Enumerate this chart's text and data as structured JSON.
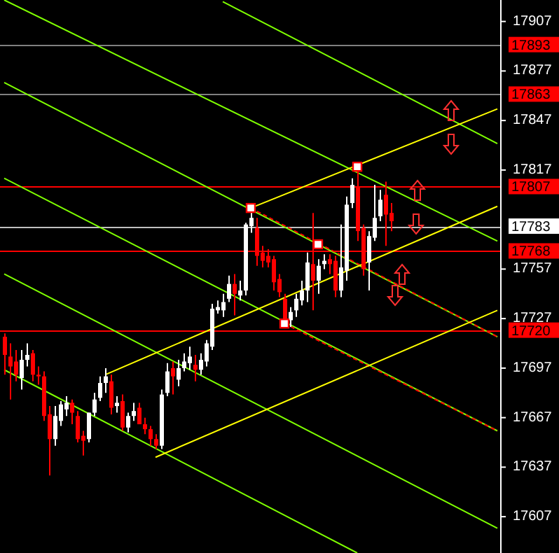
{
  "chart_data": {
    "type": "candlestick",
    "tick_labels": "y",
    "grid": false,
    "ylim": [
      17585,
      17920
    ],
    "yticks": [
      17907,
      17877,
      17847,
      17817,
      17757,
      17727,
      17697,
      17667,
      17637,
      17607
    ],
    "categories": [
      null,
      null,
      null,
      null,
      null,
      null,
      null,
      null,
      null,
      null,
      null,
      null,
      null,
      null,
      null,
      null,
      null,
      null,
      null,
      null,
      null,
      null,
      null,
      null,
      null,
      null,
      null,
      null,
      null,
      null,
      null,
      null,
      null,
      null,
      null,
      null,
      null,
      null,
      null,
      null,
      null,
      null,
      null,
      null,
      null,
      null,
      null,
      null,
      null,
      null,
      null,
      null,
      null,
      null,
      null,
      null,
      null,
      null,
      null,
      null,
      null,
      null,
      null,
      null,
      null,
      null,
      null,
      null,
      null,
      null,
      null,
      null,
      null,
      null,
      null,
      null,
      null,
      null,
      null,
      null,
      null,
      null,
      null,
      null,
      null,
      null,
      null,
      null,
      null
    ],
    "ohlc": [
      [
        17716,
        17718,
        17693,
        17705
      ],
      [
        17704,
        17712,
        17678,
        17698
      ],
      [
        17701,
        17708,
        17689,
        17693
      ],
      [
        17691,
        17708,
        17684,
        17702
      ],
      [
        17702,
        17712,
        17698,
        17705
      ],
      [
        17706,
        17708,
        17689,
        17693
      ],
      [
        17693,
        17698,
        17687,
        17692
      ],
      [
        17692,
        17695,
        17665,
        17668
      ],
      [
        17669,
        17674,
        17632,
        17654
      ],
      [
        17654,
        17674,
        17650,
        17668
      ],
      [
        17665,
        17677,
        17662,
        17675
      ],
      [
        17672,
        17680,
        17668,
        17676
      ],
      [
        17676,
        17678,
        17663,
        17670
      ],
      [
        17668,
        17671,
        17652,
        17654
      ],
      [
        17656,
        17659,
        17644,
        17653
      ],
      [
        17654,
        17670,
        17652,
        17670
      ],
      [
        17670,
        17682,
        17668,
        17678
      ],
      [
        17679,
        17692,
        17677,
        17688
      ],
      [
        17688,
        17697,
        17682,
        17692
      ],
      [
        17689,
        17693,
        17669,
        17673
      ],
      [
        17674,
        17680,
        17670,
        17676
      ],
      [
        17677,
        17681,
        17659,
        17661
      ],
      [
        17661,
        17670,
        17658,
        17668
      ],
      [
        17668,
        17676,
        17665,
        17671
      ],
      [
        17673,
        17676,
        17663,
        17663
      ],
      [
        17663,
        17667,
        17657,
        17660
      ],
      [
        17660,
        17662,
        17650,
        17654
      ],
      [
        17654,
        17657,
        17648,
        17650
      ],
      [
        17650,
        17684,
        17648,
        17681
      ],
      [
        17682,
        17700,
        17680,
        17695
      ],
      [
        17697,
        17701,
        17681,
        17692
      ],
      [
        17690,
        17702,
        17686,
        17697
      ],
      [
        17697,
        17706,
        17695,
        17701
      ],
      [
        17700,
        17710,
        17696,
        17704
      ],
      [
        17699,
        17705,
        17689,
        17696
      ],
      [
        17696,
        17706,
        17693,
        17702
      ],
      [
        17701,
        17714,
        17698,
        17712
      ],
      [
        17710,
        17736,
        17708,
        17733
      ],
      [
        17732,
        17738,
        17730,
        17734
      ],
      [
        17732,
        17742,
        17728,
        17737
      ],
      [
        17739,
        17753,
        17737,
        17748
      ],
      [
        17748,
        17754,
        17729,
        17742
      ],
      [
        17741,
        17750,
        17738,
        17744
      ],
      [
        17744,
        17785,
        17741,
        17784
      ],
      [
        17783,
        17794,
        17779,
        17788
      ],
      [
        17782,
        17788,
        17759,
        17765
      ],
      [
        17767,
        17771,
        17758,
        17762
      ],
      [
        17765,
        17769,
        17758,
        17761
      ],
      [
        17763,
        17765,
        17744,
        17749
      ],
      [
        17751,
        17754,
        17740,
        17743
      ],
      [
        17739,
        17742,
        17724,
        17727
      ],
      [
        17726,
        17734,
        17722,
        17731
      ],
      [
        17732,
        17742,
        17728,
        17739
      ],
      [
        17738,
        17750,
        17735,
        17744
      ],
      [
        17744,
        17767,
        17737,
        17761
      ],
      [
        17760,
        17791,
        17732,
        17750
      ],
      [
        17750,
        17763,
        17742,
        17759
      ],
      [
        17760,
        17766,
        17757,
        17762
      ],
      [
        17763,
        17766,
        17754,
        17760
      ],
      [
        17762,
        17765,
        17740,
        17744
      ],
      [
        17744,
        17784,
        17740,
        17758
      ],
      [
        17756,
        17801,
        17750,
        17796
      ],
      [
        17797,
        17812,
        17794,
        17808
      ],
      [
        17807,
        17819,
        17774,
        17780
      ],
      [
        17782,
        17784,
        17753,
        17757
      ],
      [
        17761,
        17780,
        17744,
        17777
      ],
      [
        17776,
        17808,
        17774,
        17788
      ],
      [
        17789,
        17805,
        17786,
        17799
      ],
      [
        17802,
        17810,
        17771,
        17790
      ],
      [
        17791,
        17797,
        17780,
        17786
      ],
      null,
      null,
      null,
      null,
      null,
      null,
      null,
      null,
      null,
      null,
      null,
      null,
      null,
      null,
      null,
      null,
      null,
      null,
      null
    ],
    "colors": [
      "#ff0000",
      "#ff0000",
      "#ff0000",
      "#ffffff",
      "#ffffff",
      "#ff0000",
      "#ff0000",
      "#ff0000",
      "#ff0000",
      "#ffffff",
      "#ffffff",
      "#ffffff",
      "#ff0000",
      "#ff0000",
      "#ff0000",
      "#ffffff",
      "#ffffff",
      "#ffffff",
      "#ffffff",
      "#ff0000",
      "#ffffff",
      "#ff0000",
      "#ffffff",
      "#ffffff",
      "#ff0000",
      "#ff0000",
      "#ff0000",
      "#ff0000",
      "#ffffff",
      "#ffffff",
      "#ff0000",
      "#ffffff",
      "#ffffff",
      "#ffffff",
      "#ff0000",
      "#ffffff",
      "#ffffff",
      "#ffffff",
      "#ffffff",
      "#ffffff",
      "#ffffff",
      "#ff0000",
      "#ffffff",
      "#ffffff",
      "#ffffff",
      "#ff0000",
      "#ff0000",
      "#ff0000",
      "#ff0000",
      "#ff0000",
      "#ff0000",
      "#ffffff",
      "#ffffff",
      "#ffffff",
      "#ffffff",
      "#ff0000",
      "#ffffff",
      "#ffffff",
      "#ff0000",
      "#ff0000",
      "#ffffff",
      "#ffffff",
      "#ffffff",
      "#ff0000",
      "#ff0000",
      "#ffffff",
      "#ffffff",
      "#ffffff",
      "#ff0000",
      "#ff0000",
      null,
      null,
      null,
      null,
      null,
      null,
      null,
      null,
      null,
      null,
      null,
      null,
      null,
      null,
      null,
      null,
      null,
      null,
      null
    ],
    "series": [
      {
        "type": "line",
        "color": "#7fff00",
        "values": [
          null,
          null,
          null,
          null,
          null,
          null,
          null,
          null,
          null,
          null,
          null,
          null,
          null,
          null,
          null,
          null,
          null,
          null,
          null,
          null,
          null,
          null,
          null,
          null,
          null,
          null,
          null,
          null,
          null,
          null,
          null,
          null,
          null,
          null,
          null,
          null,
          null,
          null,
          null,
          17919,
          null,
          null,
          null,
          null,
          null,
          null,
          null,
          null,
          null,
          null,
          null,
          null,
          null,
          null,
          null,
          null,
          null,
          null,
          null,
          null,
          null,
          null,
          null,
          null,
          null,
          null,
          null,
          null,
          null,
          null,
          null,
          null,
          null,
          null,
          null,
          null,
          null,
          null,
          null,
          null,
          null,
          null,
          null,
          null,
          null,
          null,
          null,
          null,
          17833
        ]
      },
      {
        "type": "line",
        "color": "#7fff00",
        "values": [
          17920,
          null,
          null,
          null,
          null,
          null,
          null,
          null,
          null,
          null,
          null,
          null,
          null,
          null,
          null,
          null,
          null,
          null,
          null,
          null,
          null,
          null,
          null,
          null,
          null,
          null,
          null,
          null,
          null,
          null,
          null,
          null,
          null,
          null,
          null,
          null,
          null,
          null,
          null,
          null,
          null,
          null,
          null,
          null,
          null,
          null,
          null,
          null,
          null,
          null,
          null,
          null,
          null,
          null,
          null,
          null,
          null,
          null,
          null,
          null,
          null,
          null,
          null,
          null,
          null,
          null,
          null,
          null,
          null,
          null,
          null,
          null,
          null,
          null,
          null,
          null,
          null,
          null,
          null,
          null,
          null,
          null,
          null,
          null,
          null,
          null,
          null,
          null,
          17774
        ]
      },
      {
        "type": "line",
        "color": "#7fff00",
        "values": [
          17870,
          null,
          null,
          null,
          null,
          null,
          null,
          null,
          null,
          null,
          null,
          null,
          null,
          null,
          null,
          null,
          null,
          null,
          null,
          null,
          null,
          null,
          null,
          null,
          null,
          null,
          null,
          null,
          null,
          null,
          null,
          null,
          null,
          null,
          null,
          null,
          null,
          null,
          null,
          null,
          null,
          null,
          null,
          null,
          null,
          null,
          null,
          null,
          null,
          null,
          null,
          null,
          null,
          null,
          null,
          null,
          null,
          null,
          null,
          null,
          null,
          null,
          null,
          null,
          null,
          null,
          null,
          null,
          null,
          null,
          null,
          null,
          null,
          null,
          null,
          null,
          null,
          null,
          null,
          null,
          null,
          null,
          null,
          null,
          null,
          null,
          null,
          null,
          17716
        ]
      },
      {
        "type": "line",
        "color": "#7fff00",
        "values": [
          17812,
          null,
          null,
          null,
          null,
          null,
          null,
          null,
          null,
          null,
          null,
          null,
          null,
          null,
          null,
          null,
          null,
          null,
          null,
          null,
          null,
          null,
          null,
          null,
          null,
          null,
          null,
          null,
          null,
          null,
          null,
          null,
          null,
          null,
          null,
          null,
          null,
          null,
          null,
          null,
          null,
          null,
          null,
          null,
          null,
          null,
          null,
          null,
          null,
          null,
          null,
          null,
          null,
          null,
          null,
          null,
          null,
          null,
          null,
          null,
          null,
          null,
          null,
          null,
          null,
          null,
          null,
          null,
          null,
          null,
          null,
          null,
          null,
          null,
          null,
          null,
          null,
          null,
          null,
          null,
          null,
          null,
          null,
          null,
          null,
          null,
          null,
          null,
          17659
        ]
      },
      {
        "type": "line",
        "color": "#7fff00",
        "values": [
          17754,
          null,
          null,
          null,
          null,
          null,
          null,
          null,
          null,
          null,
          null,
          null,
          null,
          null,
          null,
          null,
          null,
          null,
          null,
          null,
          null,
          null,
          null,
          null,
          null,
          null,
          null,
          null,
          null,
          null,
          null,
          null,
          null,
          null,
          null,
          null,
          null,
          null,
          null,
          null,
          null,
          null,
          null,
          null,
          null,
          null,
          null,
          null,
          null,
          null,
          null,
          null,
          null,
          null,
          null,
          null,
          null,
          null,
          null,
          null,
          null,
          null,
          null,
          null,
          null,
          null,
          null,
          null,
          null,
          null,
          null,
          null,
          null,
          null,
          null,
          null,
          null,
          null,
          null,
          null,
          null,
          null,
          null,
          null,
          null,
          null,
          null,
          null,
          17600
        ]
      },
      {
        "type": "line",
        "color": "#7fff00",
        "values": [
          17696,
          null,
          null,
          null,
          null,
          null,
          null,
          null,
          null,
          null,
          null,
          null,
          null,
          null,
          null,
          null,
          null,
          null,
          null,
          null,
          null,
          null,
          null,
          null,
          null,
          null,
          null,
          null,
          null,
          null,
          null,
          null,
          null,
          null,
          null,
          null,
          null,
          null,
          null,
          null,
          null,
          null,
          null,
          null,
          null,
          null,
          null,
          null,
          null,
          null,
          null,
          null,
          null,
          null,
          null,
          null,
          null,
          null,
          null,
          null,
          null,
          null,
          null,
          17585,
          null,
          null,
          null,
          null,
          null,
          null,
          null,
          null,
          null,
          null,
          null,
          null,
          null,
          null,
          null,
          null,
          null,
          null,
          null,
          null,
          null,
          null,
          null,
          null,
          null
        ]
      },
      {
        "type": "line",
        "color": "#ff0000",
        "line_style": "dashed",
        "values": [
          null,
          null,
          null,
          null,
          null,
          null,
          null,
          null,
          null,
          null,
          null,
          null,
          null,
          null,
          null,
          null,
          null,
          null,
          null,
          null,
          null,
          null,
          null,
          null,
          null,
          null,
          null,
          null,
          null,
          null,
          null,
          null,
          null,
          null,
          null,
          null,
          null,
          null,
          null,
          null,
          null,
          null,
          null,
          null,
          17794,
          null,
          null,
          null,
          null,
          null,
          null,
          null,
          null,
          null,
          null,
          null,
          null,
          null,
          null,
          null,
          null,
          null,
          null,
          null,
          null,
          null,
          null,
          null,
          null,
          null,
          null,
          null,
          null,
          null,
          null,
          null,
          null,
          null,
          null,
          null,
          null,
          null,
          null,
          null,
          null,
          null,
          null,
          null,
          17716
        ]
      },
      {
        "type": "line",
        "color": "#ff0000",
        "line_style": "dashed",
        "values": [
          null,
          null,
          null,
          null,
          null,
          null,
          null,
          null,
          null,
          null,
          null,
          null,
          null,
          null,
          null,
          null,
          null,
          null,
          null,
          null,
          null,
          null,
          null,
          null,
          null,
          null,
          null,
          null,
          null,
          null,
          null,
          null,
          null,
          null,
          null,
          null,
          null,
          null,
          null,
          null,
          null,
          null,
          null,
          null,
          null,
          null,
          null,
          null,
          null,
          null,
          17724,
          null,
          null,
          null,
          null,
          null,
          null,
          null,
          null,
          null,
          null,
          null,
          null,
          null,
          null,
          null,
          null,
          null,
          null,
          null,
          null,
          null,
          null,
          null,
          null,
          null,
          null,
          null,
          null,
          null,
          null,
          null,
          null,
          null,
          null,
          null,
          null,
          null,
          17659
        ]
      },
      {
        "type": "line",
        "color": "#ffff00",
        "values": [
          null,
          null,
          null,
          null,
          null,
          null,
          null,
          null,
          null,
          null,
          null,
          null,
          null,
          null,
          null,
          null,
          null,
          null,
          null,
          null,
          null,
          null,
          null,
          null,
          null,
          null,
          null,
          null,
          null,
          null,
          null,
          null,
          null,
          null,
          null,
          null,
          null,
          null,
          null,
          null,
          null,
          null,
          null,
          null,
          17794,
          null,
          null,
          null,
          null,
          null,
          null,
          null,
          null,
          null,
          null,
          null,
          null,
          null,
          null,
          null,
          null,
          null,
          null,
          null,
          null,
          null,
          null,
          null,
          null,
          null,
          null,
          null,
          null,
          null,
          null,
          null,
          null,
          null,
          null,
          null,
          null,
          null,
          null,
          null,
          null,
          null,
          null,
          null,
          17854
        ]
      },
      {
        "type": "line",
        "color": "#ffff00",
        "values": [
          null,
          null,
          null,
          null,
          null,
          null,
          null,
          null,
          null,
          null,
          null,
          null,
          null,
          null,
          null,
          null,
          null,
          null,
          17693,
          null,
          null,
          null,
          null,
          null,
          null,
          null,
          null,
          null,
          null,
          null,
          null,
          null,
          null,
          null,
          null,
          null,
          null,
          null,
          null,
          null,
          null,
          null,
          null,
          null,
          null,
          null,
          null,
          null,
          null,
          null,
          null,
          null,
          null,
          null,
          null,
          null,
          null,
          null,
          null,
          null,
          null,
          null,
          null,
          null,
          null,
          null,
          null,
          null,
          null,
          null,
          null,
          null,
          null,
          null,
          null,
          null,
          null,
          null,
          null,
          null,
          null,
          null,
          null,
          null,
          null,
          null,
          null,
          null,
          17795
        ]
      },
      {
        "type": "line",
        "color": "#ffff00",
        "values": [
          null,
          null,
          null,
          null,
          null,
          null,
          null,
          null,
          null,
          null,
          null,
          null,
          null,
          null,
          null,
          null,
          null,
          null,
          null,
          null,
          null,
          null,
          null,
          null,
          null,
          null,
          null,
          17643,
          null,
          null,
          null,
          null,
          null,
          null,
          null,
          null,
          null,
          null,
          null,
          null,
          null,
          null,
          null,
          null,
          null,
          null,
          null,
          null,
          null,
          null,
          null,
          null,
          null,
          null,
          null,
          null,
          null,
          null,
          null,
          null,
          null,
          null,
          null,
          null,
          null,
          null,
          null,
          null,
          null,
          null,
          null,
          null,
          null,
          null,
          null,
          null,
          null,
          null,
          null,
          null,
          null,
          null,
          null,
          null,
          null,
          null,
          null,
          null,
          17732
        ]
      },
      {
        "type": "scatter",
        "color": "#ff0000",
        "marker": "square",
        "values": [
          null,
          null,
          null,
          null,
          null,
          null,
          null,
          null,
          null,
          null,
          null,
          null,
          null,
          null,
          null,
          null,
          null,
          null,
          null,
          null,
          null,
          null,
          null,
          null,
          null,
          null,
          null,
          null,
          null,
          null,
          null,
          null,
          null,
          null,
          null,
          null,
          null,
          null,
          null,
          null,
          null,
          null,
          null,
          null,
          17794,
          null,
          null,
          null,
          null,
          null,
          17724,
          null,
          null,
          null,
          null,
          null,
          17772,
          null,
          null,
          null,
          null,
          null,
          null,
          17819,
          null,
          null,
          null,
          null,
          null,
          null,
          null,
          null,
          null,
          null,
          null,
          null,
          null,
          null,
          null,
          null,
          null,
          null,
          null,
          null,
          null,
          null,
          null,
          null,
          null
        ]
      }
    ],
    "ref_lines": [
      {
        "axis": "y",
        "value": 17893,
        "label": "17893",
        "color": "#808080"
      },
      {
        "axis": "y",
        "value": 17863,
        "label": "17863",
        "color": "#808080"
      },
      {
        "axis": "y",
        "value": 17807,
        "label": "17807",
        "color": "#ff0000"
      },
      {
        "axis": "y",
        "value": 17783,
        "label": "17783",
        "color": "#c0c0c0"
      },
      {
        "axis": "y",
        "value": 17768,
        "label": "17768",
        "color": "#ff0000"
      },
      {
        "axis": "y",
        "value": 17720,
        "label": "17720",
        "color": "#ff0000"
      }
    ]
  }
}
